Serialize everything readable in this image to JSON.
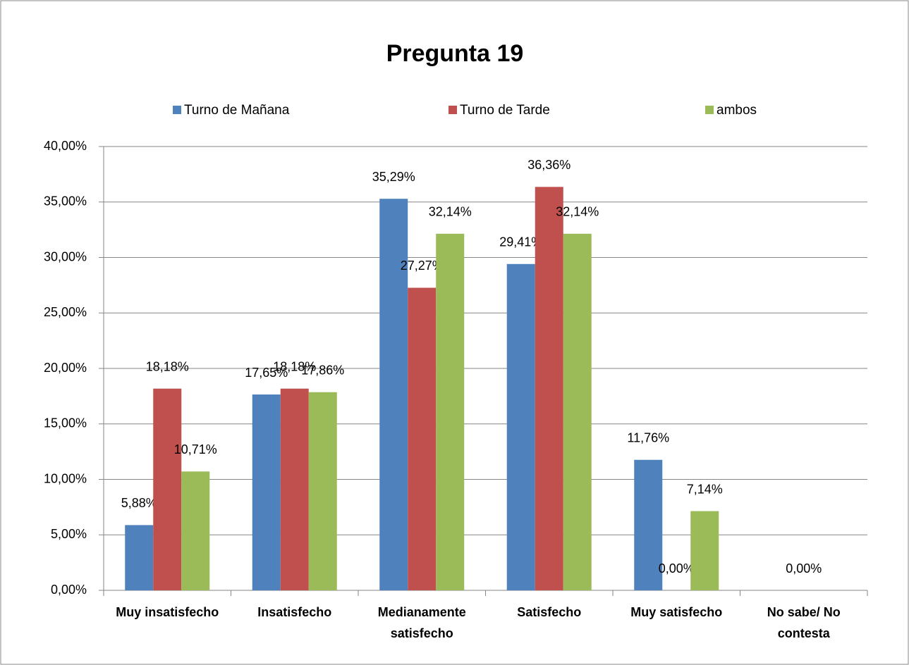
{
  "chart_data": {
    "type": "bar",
    "title": "Pregunta 19",
    "categories": [
      "Muy insatisfecho",
      "Insatisfecho",
      "Medianamente satisfecho",
      "Satisfecho",
      "Muy satisfecho",
      "No sabe/ No contesta"
    ],
    "series": [
      {
        "name": "Turno de Mañana",
        "color": "#4f81bd",
        "values": [
          5.88,
          17.65,
          35.29,
          29.41,
          11.76,
          null
        ],
        "value_labels": [
          "5,88%",
          "17,65%",
          "35,29%",
          "29,41%",
          "11,76%",
          null
        ]
      },
      {
        "name": "Turno de Tarde",
        "color": "#c0504d",
        "values": [
          18.18,
          18.18,
          27.27,
          36.36,
          0,
          0
        ],
        "value_labels": [
          "18,18%",
          "18,18%",
          "27,27%",
          "36,36%",
          "0,00%",
          "0,00%"
        ]
      },
      {
        "name": "ambos",
        "color": "#9bbb59",
        "values": [
          10.71,
          17.86,
          32.14,
          32.14,
          7.14,
          null
        ],
        "value_labels": [
          "10,71%",
          "17,86%",
          "32,14%",
          "32,14%",
          "7,14%",
          null
        ]
      }
    ],
    "ylim": [
      0,
      40
    ],
    "yticks": [
      {
        "value": 0,
        "label": "0,00%"
      },
      {
        "value": 5,
        "label": "5,00%"
      },
      {
        "value": 10,
        "label": "10,00%"
      },
      {
        "value": 15,
        "label": "15,00%"
      },
      {
        "value": 20,
        "label": "20,00%"
      },
      {
        "value": 25,
        "label": "25,00%"
      },
      {
        "value": 30,
        "label": "30,00%"
      },
      {
        "value": 35,
        "label": "35,00%"
      },
      {
        "value": 40,
        "label": "40,00%"
      }
    ],
    "grid": true,
    "legend": "top"
  }
}
